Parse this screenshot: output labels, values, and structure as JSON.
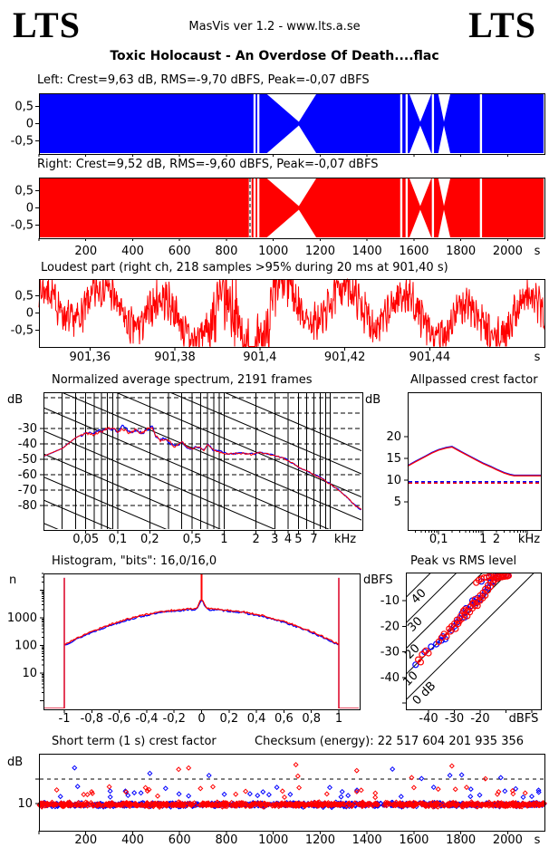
{
  "header": {
    "logo_left": "LTS",
    "logo_right": "LTS",
    "center": "MasVis ver 1.2 - www.lts.a.se",
    "title": "Toxic Holocaust - An Overdose Of Death....flac"
  },
  "units": {
    "s": "s",
    "khz": "kHz",
    "db": "dB",
    "dbfs": "dBFS",
    "n": "n"
  },
  "colors": {
    "left": "#0000ff",
    "right": "#ff0000",
    "axis": "#000000",
    "background": "#ffffff"
  },
  "time_axis": {
    "t_max": 2157,
    "ticks": [
      200,
      400,
      600,
      800,
      1000,
      1200,
      1400,
      1600,
      1800,
      2000
    ]
  },
  "chart_data": [
    {
      "id": "waveform_left",
      "type": "area",
      "channel": "left",
      "title": "Left: Crest=9,63 dB, RMS=-9,70 dBFS, Peak=-0,07 dBFS",
      "crest_db": 9.63,
      "rms_dbfs": -9.7,
      "peak_dbfs": -0.07,
      "ylim": [
        -1,
        1
      ],
      "yticks": [
        {
          "v": 0.5,
          "label": "0,5"
        },
        {
          "v": 0,
          "label": "0"
        },
        {
          "v": -0.5,
          "label": "-0,5"
        }
      ],
      "gaps": {
        "slits_s": [
          920,
          936,
          1546,
          1569,
          1681,
          1886
        ],
        "pinches": [
          {
            "from_s": 973,
            "to_s": 1183,
            "apex_s": 1109
          },
          {
            "from_s": 1581,
            "to_s": 1674,
            "apex_s": 1627
          },
          {
            "from_s": 1704,
            "to_s": 1755,
            "apex_s": 1728
          }
        ]
      }
    },
    {
      "id": "waveform_right",
      "type": "area",
      "channel": "right",
      "title": "Right: Crest=9,52 dB, RMS=-9,60 dBFS, Peak=-0,07 dBFS",
      "crest_db": 9.52,
      "rms_dbfs": -9.6,
      "peak_dbfs": -0.07,
      "marker_s": 901.4,
      "ylim": [
        -1,
        1
      ],
      "yticks": [
        {
          "v": 0.5,
          "label": "0,5"
        },
        {
          "v": 0,
          "label": "0"
        },
        {
          "v": -0.5,
          "label": "-0,5"
        }
      ],
      "gaps": {
        "slits_s": [
          920,
          936,
          1546,
          1569,
          1681,
          1886
        ],
        "pinches": [
          {
            "from_s": 973,
            "to_s": 1183,
            "apex_s": 1109
          },
          {
            "from_s": 1581,
            "to_s": 1674,
            "apex_s": 1627
          },
          {
            "from_s": 1704,
            "to_s": 1755,
            "apex_s": 1728
          }
        ]
      }
    },
    {
      "id": "loudest_part",
      "type": "line",
      "title": "Loudest part (right ch, 218 samples >95% during 20 ms at 901,40 s)",
      "xlim_s": [
        901.348,
        901.467
      ],
      "clip_region_s": [
        901.388,
        901.408
      ],
      "noise_seed": 7,
      "xticks": [
        {
          "v": 901.36,
          "label": "901,36"
        },
        {
          "v": 901.38,
          "label": "901,38"
        },
        {
          "v": 901.4,
          "label": "901,4"
        },
        {
          "v": 901.42,
          "label": "901,42"
        },
        {
          "v": 901.44,
          "label": "901,44"
        }
      ],
      "yticks": [
        {
          "v": 0.5,
          "label": "0,5"
        },
        {
          "v": 0,
          "label": "0"
        },
        {
          "v": -0.5,
          "label": "-0,5"
        }
      ]
    },
    {
      "id": "spectrum",
      "type": "line",
      "title": "Normalized average spectrum, 2191 frames",
      "flim_khz": [
        0.02,
        20
      ],
      "yticks": [
        {
          "v": -30,
          "label": "-30"
        },
        {
          "v": -40,
          "label": "-40"
        },
        {
          "v": -50,
          "label": "-50"
        },
        {
          "v": -60,
          "label": "-60"
        },
        {
          "v": -70,
          "label": "-70"
        },
        {
          "v": -80,
          "label": "-80"
        }
      ],
      "xticks": [
        {
          "v": 0.05,
          "label": "0,05"
        },
        {
          "v": 0.1,
          "label": "0,1"
        },
        {
          "v": 0.2,
          "label": "0,2"
        },
        {
          "v": 0.5,
          "label": "0,5"
        },
        {
          "v": 1,
          "label": "1"
        },
        {
          "v": 2,
          "label": "2"
        },
        {
          "v": 3,
          "label": "3"
        },
        {
          "v": 4,
          "label": "4"
        },
        {
          "v": 5,
          "label": "5"
        },
        {
          "v": 7,
          "label": "7"
        }
      ],
      "points_khz_db": [
        [
          0.02,
          -48
        ],
        [
          0.03,
          -43
        ],
        [
          0.04,
          -36
        ],
        [
          0.05,
          -33
        ],
        [
          0.06,
          -34
        ],
        [
          0.07,
          -31.5
        ],
        [
          0.08,
          -30
        ],
        [
          0.09,
          -31
        ],
        [
          0.1,
          -32
        ],
        [
          0.11,
          -29.5
        ],
        [
          0.13,
          -33
        ],
        [
          0.15,
          -31
        ],
        [
          0.17,
          -33
        ],
        [
          0.19,
          -30
        ],
        [
          0.21,
          -29
        ],
        [
          0.23,
          -35
        ],
        [
          0.25,
          -38
        ],
        [
          0.28,
          -36
        ],
        [
          0.3,
          -39
        ],
        [
          0.35,
          -41
        ],
        [
          0.4,
          -39
        ],
        [
          0.45,
          -42
        ],
        [
          0.5,
          -43
        ],
        [
          0.6,
          -42
        ],
        [
          0.65,
          -44
        ],
        [
          0.7,
          -40
        ],
        [
          0.8,
          -44
        ],
        [
          0.9,
          -45
        ],
        [
          1.0,
          -46
        ],
        [
          1.2,
          -46.5
        ],
        [
          1.5,
          -46
        ],
        [
          1.8,
          -47
        ],
        [
          2.0,
          -46
        ],
        [
          2.2,
          -45.5
        ],
        [
          2.5,
          -46.5
        ],
        [
          3.0,
          -47.5
        ],
        [
          3.5,
          -49
        ],
        [
          4.0,
          -51
        ],
        [
          4.5,
          -53
        ],
        [
          5.0,
          -55
        ],
        [
          5.5,
          -56.5
        ],
        [
          6.0,
          -57
        ],
        [
          6.5,
          -58.5
        ],
        [
          7.0,
          -60
        ],
        [
          8.0,
          -62
        ],
        [
          9.0,
          -64
        ],
        [
          10,
          -66
        ],
        [
          12,
          -70
        ],
        [
          14,
          -74
        ],
        [
          16,
          -78
        ],
        [
          18,
          -81
        ],
        [
          20,
          -83
        ]
      ],
      "jitter_seed_left": 3,
      "jitter_seed_right": 5
    },
    {
      "id": "allpassed_crest",
      "type": "line",
      "title": "Allpassed crest factor",
      "flim_khz": [
        0.02,
        20
      ],
      "yticks": [
        {
          "v": 5,
          "label": "5"
        },
        {
          "v": 10,
          "label": "10"
        },
        {
          "v": 15,
          "label": "15"
        },
        {
          "v": 20,
          "label": "20"
        }
      ],
      "xticks": [
        {
          "v": 0.1,
          "label": "0,1"
        },
        {
          "v": 1,
          "label": "1"
        },
        {
          "v": 2,
          "label": "2"
        }
      ],
      "points_khz_db": [
        [
          0.02,
          13.2
        ],
        [
          0.03,
          14.2
        ],
        [
          0.05,
          15.4
        ],
        [
          0.07,
          16.2
        ],
        [
          0.1,
          16.9
        ],
        [
          0.15,
          17.4
        ],
        [
          0.2,
          17.6
        ],
        [
          0.3,
          16.6
        ],
        [
          0.5,
          15.4
        ],
        [
          0.7,
          14.6
        ],
        [
          1,
          13.8
        ],
        [
          1.5,
          13.0
        ],
        [
          2,
          12.4
        ],
        [
          3,
          11.6
        ],
        [
          4,
          11.2
        ],
        [
          5,
          11.0
        ],
        [
          7,
          11.0
        ],
        [
          10,
          11.0
        ],
        [
          20,
          11.0
        ]
      ],
      "dashed_left_db": 9.63,
      "dashed_right_db": 9.52
    },
    {
      "id": "histogram",
      "type": "line",
      "title": "Histogram, \"bits\": 16,0/16,0",
      "bits_left": "16,0",
      "bits_right": "16,0",
      "yticks": [
        {
          "v": 10,
          "label": "10"
        },
        {
          "v": 100,
          "label": "100"
        },
        {
          "v": 1000,
          "label": "1000"
        }
      ],
      "xticks": [
        {
          "v": -1,
          "label": "-1"
        },
        {
          "v": -0.8,
          "label": "-0,8"
        },
        {
          "v": -0.6,
          "label": "-0,6"
        },
        {
          "v": -0.4,
          "label": "-0,4"
        },
        {
          "v": -0.2,
          "label": "-0,2"
        },
        {
          "v": 0,
          "label": "0"
        },
        {
          "v": 0.2,
          "label": "0,2"
        },
        {
          "v": 0.4,
          "label": "0,4"
        },
        {
          "v": 0.6,
          "label": "0,6"
        },
        {
          "v": 0.8,
          "label": "0,8"
        },
        {
          "v": 1,
          "label": "1"
        }
      ],
      "shape": {
        "edge_n": 110,
        "shoulder_log": 3.33,
        "curve_k": 1.29,
        "center_bump_log": 0.33,
        "spike_n": 28000
      },
      "seed_left": 13,
      "seed_right": 17
    },
    {
      "id": "peak_vs_rms",
      "type": "scatter",
      "title": "Peak vs RMS level",
      "xticks": [
        {
          "v": -40,
          "label": "-40"
        },
        {
          "v": -30,
          "label": "-30"
        },
        {
          "v": -20,
          "label": "-20"
        }
      ],
      "yticks": [
        {
          "v": -10,
          "label": "-10"
        },
        {
          "v": -20,
          "label": "-20"
        },
        {
          "v": -30,
          "label": "-30"
        },
        {
          "v": -40,
          "label": "-40"
        }
      ],
      "diagonals": [
        {
          "c": 40,
          "label": "40"
        },
        {
          "c": 30,
          "label": "30"
        },
        {
          "c": 20,
          "label": "20"
        },
        {
          "c": 10,
          "label": "10"
        },
        {
          "c": 0,
          "label": "0 dB"
        }
      ],
      "right_points": [
        [
          -44,
          -33
        ],
        [
          -42.5,
          -31
        ],
        [
          -41,
          -29.5
        ],
        [
          -40,
          -30.5
        ],
        [
          -43,
          -34
        ],
        [
          -36,
          -26
        ],
        [
          -35,
          -24.5
        ],
        [
          -34,
          -23
        ],
        [
          -33,
          -24
        ],
        [
          -32,
          -21
        ],
        [
          -31,
          -20
        ],
        [
          -30,
          -19
        ],
        [
          -29.5,
          -21
        ],
        [
          -29,
          -17.5
        ],
        [
          -28,
          -18
        ],
        [
          -27.5,
          -16
        ],
        [
          -27,
          -17
        ],
        [
          -26,
          -15.5
        ],
        [
          -26,
          -13.5
        ],
        [
          -25,
          -14
        ],
        [
          -25,
          -16
        ],
        [
          -24,
          -12.5
        ],
        [
          -24,
          -14.5
        ],
        [
          -23,
          -11
        ],
        [
          -23,
          -13
        ],
        [
          -22,
          -12
        ],
        [
          -22,
          -9.5
        ],
        [
          -21,
          -10.5
        ],
        [
          -21,
          -12
        ],
        [
          -20,
          -8
        ],
        [
          -20,
          -10
        ],
        [
          -19,
          -7
        ],
        [
          -19,
          -9
        ],
        [
          -18,
          -5.5
        ],
        [
          -18,
          -8
        ],
        [
          -17,
          -6
        ],
        [
          -17,
          -4
        ],
        [
          -16,
          -4.5
        ],
        [
          -16,
          -2
        ],
        [
          -15,
          -3
        ],
        [
          -15,
          -1
        ],
        [
          -14.5,
          -2
        ],
        [
          -14,
          -0.8
        ],
        [
          -13.5,
          -1.5
        ],
        [
          -13,
          -0.5
        ],
        [
          -12.5,
          -1
        ],
        [
          -12,
          -0.4
        ],
        [
          -11.5,
          -0.8
        ],
        [
          -11,
          -0.3
        ],
        [
          -10.5,
          -0.6
        ],
        [
          -10,
          -0.3
        ],
        [
          -9.5,
          -0.5
        ],
        [
          -9,
          -0.3
        ],
        [
          -16.5,
          -0.5
        ],
        [
          -18.5,
          -1
        ],
        [
          -20.5,
          -2
        ],
        [
          -21.5,
          -3
        ],
        [
          -19.5,
          -1.5
        ],
        [
          -17.5,
          -1
        ],
        [
          -15.5,
          -0.4
        ],
        [
          -22.5,
          -11
        ],
        [
          -28.5,
          -19
        ],
        [
          -31.5,
          -22
        ],
        [
          -26.5,
          -14
        ]
      ],
      "left_points": [
        [
          -45,
          -35
        ],
        [
          -41.5,
          -30
        ],
        [
          -39,
          -28
        ],
        [
          -37,
          -27
        ],
        [
          -34.5,
          -24
        ],
        [
          -33.5,
          -25
        ],
        [
          -31,
          -21.5
        ],
        [
          -29,
          -18.5
        ],
        [
          -27,
          -15
        ],
        [
          -25.5,
          -13
        ],
        [
          -24.5,
          -13.5
        ],
        [
          -23.5,
          -12
        ],
        [
          -22,
          -10.5
        ],
        [
          -21,
          -9
        ],
        [
          -20,
          -9.5
        ],
        [
          -19,
          -8
        ],
        [
          -18,
          -6.5
        ],
        [
          -17,
          -5
        ],
        [
          -16,
          -3
        ],
        [
          -15,
          -2.5
        ],
        [
          -14,
          -1.2
        ],
        [
          -13,
          -0.8
        ],
        [
          -12,
          -0.6
        ],
        [
          -11,
          -0.5
        ],
        [
          -10,
          -0.4
        ],
        [
          -9.2,
          -0.3
        ],
        [
          -26,
          -16.5
        ],
        [
          -30,
          -20
        ],
        [
          -35,
          -25.5
        ],
        [
          -16.5,
          -1
        ],
        [
          -19.5,
          -2.5
        ],
        [
          -21.5,
          -11
        ],
        [
          -23,
          -10
        ],
        [
          -13.5,
          -0.4
        ],
        [
          -28,
          -17
        ]
      ]
    },
    {
      "id": "shortterm_crest",
      "type": "scatter",
      "title": "Short term (1 s) crest factor",
      "checksum_label": "Checksum (energy): 22 517 604 201 935 356",
      "yticks": [
        {
          "v": 10,
          "label": "10"
        }
      ],
      "dashed_db": 20,
      "seed": 11,
      "count_right": 900,
      "count_left": 700,
      "base_db": 9.6
    }
  ]
}
